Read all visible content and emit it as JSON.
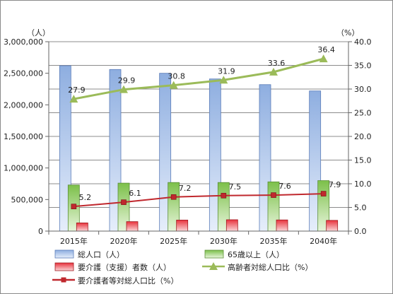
{
  "chart_data": {
    "type": "bar",
    "categories": [
      "2015年",
      "2020年",
      "2025年",
      "2030年",
      "2035年",
      "2040年"
    ],
    "left_axis": {
      "unit": "（人）",
      "ylim": [
        0,
        3000000
      ],
      "ticks": [
        "0",
        "500,000",
        "1,000,000",
        "1,500,000",
        "2,000,000",
        "2,500,000",
        "3,000,000"
      ]
    },
    "right_axis": {
      "unit": "（%）",
      "ylim": [
        0,
        40
      ],
      "ticks": [
        "0.0",
        "5.0",
        "10.0",
        "15.0",
        "20.0",
        "25.0",
        "30.0",
        "35.0",
        "40.0"
      ]
    },
    "series": [
      {
        "name": "総人口（人）",
        "type": "bar",
        "axis": "left",
        "color": "#8eaee0",
        "values": [
          2620000,
          2560000,
          2500000,
          2410000,
          2320000,
          2220000
        ]
      },
      {
        "name": "65歳以上（人）",
        "type": "bar",
        "axis": "left",
        "color": "#8ccb5a",
        "values": [
          730000,
          760000,
          770000,
          770000,
          780000,
          800000
        ]
      },
      {
        "name": "要介護（支援）者数（人）",
        "type": "bar",
        "axis": "left",
        "color": "#e8323c",
        "values": [
          130000,
          150000,
          175000,
          180000,
          177000,
          170000
        ]
      },
      {
        "name": "高齢者対総人口比（%）",
        "type": "line",
        "axis": "right",
        "color": "#9bbb59",
        "marker": "triangle",
        "values": [
          27.9,
          29.9,
          30.8,
          31.9,
          33.6,
          36.4
        ],
        "labels": [
          "27.9",
          "29.9",
          "30.8",
          "31.9",
          "33.6",
          "36.4"
        ]
      },
      {
        "name": "要介護者等対総人口比（%）",
        "type": "line",
        "axis": "right",
        "color": "#c0282e",
        "marker": "square",
        "values": [
          5.2,
          6.1,
          7.2,
          7.5,
          7.6,
          7.9
        ],
        "labels": [
          "5.2",
          "6.1",
          "7.2",
          "7.5",
          "7.6",
          "7.9"
        ]
      }
    ],
    "grid": true,
    "legend_position": "bottom"
  }
}
